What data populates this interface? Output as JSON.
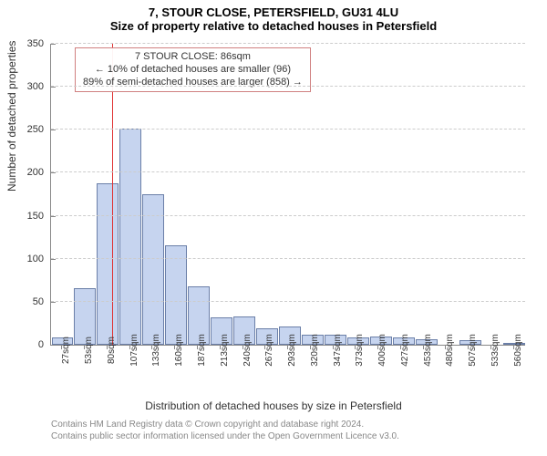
{
  "header": {
    "address_line": "7, STOUR CLOSE, PETERSFIELD, GU31 4LU",
    "subtitle": "Size of property relative to detached houses in Petersfield"
  },
  "chart": {
    "type": "histogram",
    "ylabel": "Number of detached properties",
    "xlabel": "Distribution of detached houses by size in Petersfield",
    "ylim": [
      0,
      350
    ],
    "ytick_step": 50,
    "yticks": [
      0,
      50,
      100,
      150,
      200,
      250,
      300,
      350
    ],
    "categories": [
      "27sqm",
      "53sqm",
      "80sqm",
      "107sqm",
      "133sqm",
      "160sqm",
      "187sqm",
      "213sqm",
      "240sqm",
      "267sqm",
      "293sqm",
      "320sqm",
      "347sqm",
      "373sqm",
      "400sqm",
      "427sqm",
      "453sqm",
      "480sqm",
      "507sqm",
      "533sqm",
      "560sqm"
    ],
    "values": [
      8,
      66,
      188,
      251,
      175,
      116,
      68,
      32,
      33,
      19,
      21,
      12,
      12,
      8,
      10,
      8,
      6,
      0,
      5,
      0,
      2
    ],
    "bar_fill": "#c6d4ef",
    "bar_stroke": "#6b7fa8",
    "background_color": "#ffffff",
    "grid_color": "#cccccc",
    "axis_color": "#888888",
    "marker": {
      "color": "#e03030",
      "category_before_index": 2,
      "category_after_index": 3,
      "position_fraction_within_gap": 0.23
    },
    "annotation": {
      "line1": "7 STOUR CLOSE: 86sqm",
      "line2": "← 10% of detached houses are smaller (96)",
      "line3": "89% of semi-detached houses are larger (858) →",
      "border_color": "#d08080",
      "text_color": "#333333",
      "fontsize": 11
    }
  },
  "footer": {
    "line1": "Contains HM Land Registry data © Crown copyright and database right 2024.",
    "line2": "Contains public sector information licensed under the Open Government Licence v3.0."
  }
}
